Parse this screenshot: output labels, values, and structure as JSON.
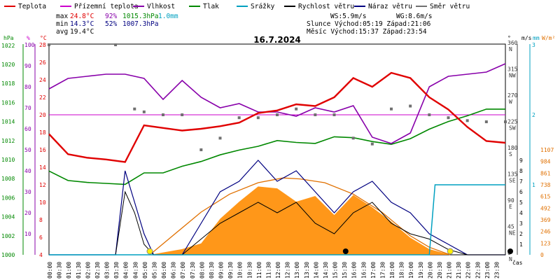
{
  "chart_data": {
    "type": "line",
    "title": "16.7.2024",
    "legend": [
      {
        "label": "Teplota",
        "color": "#e00000"
      },
      {
        "label": "Přízemní teplota",
        "color": "#cc00cc"
      },
      {
        "label": "Vlhkost",
        "color": "#8800aa"
      },
      {
        "label": "Tlak",
        "color": "#008800"
      },
      {
        "label": "Srážky",
        "color": "#00a0c0"
      },
      {
        "label": "Rychlost větru",
        "color": "#000000"
      },
      {
        "label": "Náraz větru",
        "color": "#000080"
      },
      {
        "label": "Směr větru",
        "color": "#707070"
      }
    ],
    "stats": {
      "max_label": "max",
      "max_temp": "24.8°C",
      "max_hum": "92%",
      "max_press": "1015.3hPa",
      "max_rain": "1.0mm",
      "min_label": "min",
      "min_temp": "14.3°C",
      "min_hum": "52%",
      "min_press": "1007.3hPa",
      "avg_label": "avg",
      "avg_temp": "19.4°C",
      "ws": "WS:5.9m/s",
      "wg": "WG:8.6m/s",
      "sun": "Slunce Východ:05:19   Západ:21:06",
      "moon": "Měsíc  Východ:15:37   Západ:23:54"
    },
    "axis_units": {
      "press": "hPa",
      "hum": "%",
      "temp": "°C",
      "deg": "°",
      "ms": "m/s",
      "mm": "mm",
      "wm2": "W/m²",
      "time": "čas"
    },
    "press_ticks": [
      1022,
      1020,
      1018,
      1016,
      1014,
      1012,
      1010,
      1008,
      1006,
      1004,
      1002,
      1000
    ],
    "hum_ticks": [
      100,
      90,
      80,
      70,
      60,
      50,
      40,
      30,
      20,
      10
    ],
    "temp_ticks": [
      28,
      26,
      24,
      22,
      20,
      18,
      16,
      14,
      12,
      10,
      8,
      6,
      4
    ],
    "dir_ticks": [
      "360\nN",
      "315\nNW",
      "270\nW",
      "225\nSW",
      "180\nS",
      "135\nSE",
      "90\nE",
      "45\nNE",
      "0\nN"
    ],
    "ms_ticks": [
      3,
      2,
      1
    ],
    "speed_ticks": [
      9,
      8,
      7,
      6,
      5,
      4,
      3,
      2,
      1
    ],
    "mm_ticks": [
      3,
      2,
      1
    ],
    "rad_ticks": [
      1107,
      984,
      861,
      738,
      615,
      492,
      369,
      246,
      123,
      0
    ],
    "time_labels": [
      "00:00",
      "00:30",
      "01:00",
      "01:30",
      "02:00",
      "02:30",
      "03:00",
      "03:30",
      "04:00",
      "04:30",
      "05:00",
      "05:30",
      "06:00",
      "06:30",
      "07:00",
      "07:30",
      "08:00",
      "08:30",
      "09:00",
      "09:30",
      "10:00",
      "10:30",
      "11:00",
      "11:30",
      "12:00",
      "12:30",
      "13:00",
      "13:30",
      "14:00",
      "14:30",
      "15:00",
      "15:30",
      "16:00",
      "16:30",
      "17:00",
      "17:30",
      "18:00",
      "18:30",
      "19:00",
      "19:30",
      "20:00",
      "20:30",
      "21:00",
      "21:30",
      "22:00",
      "22:30",
      "23:00",
      "23:30"
    ],
    "ground_temp_ref": 20,
    "series": [
      {
        "name": "Teplota",
        "unit": "°C",
        "x": [
          0,
          1,
          2,
          3,
          4,
          5,
          6,
          7,
          8,
          9,
          10,
          11,
          12,
          13,
          14,
          15,
          16,
          17,
          18,
          19,
          20,
          21,
          22,
          23,
          24
        ],
        "values": [
          17.8,
          15.5,
          15.1,
          14.9,
          14.6,
          18.8,
          18.5,
          18.2,
          18.4,
          18.7,
          19.1,
          20.2,
          20.5,
          21.2,
          21.0,
          22.0,
          24.2,
          23.2,
          24.8,
          24.2,
          22.0,
          20.6,
          18.6,
          17.0,
          16.8
        ]
      },
      {
        "name": "Vlhkost",
        "unit": "%",
        "x": [
          0,
          1,
          2,
          3,
          4,
          5,
          6,
          7,
          8,
          9,
          10,
          11,
          12,
          13,
          14,
          15,
          16,
          17,
          18,
          19,
          20,
          21,
          22,
          23,
          24
        ],
        "values": [
          79,
          84,
          85,
          86,
          86,
          84,
          74,
          83,
          75,
          70,
          72,
          68,
          68,
          66,
          70,
          68,
          71,
          56,
          53,
          58,
          80,
          85,
          86,
          87,
          91
        ]
      },
      {
        "name": "Tlak",
        "unit": "hPa",
        "x": [
          0,
          1,
          2,
          3,
          4,
          5,
          6,
          7,
          8,
          9,
          10,
          11,
          12,
          13,
          14,
          15,
          16,
          17,
          18,
          19,
          20,
          21,
          22,
          23,
          24
        ],
        "values": [
          1008.8,
          1007.8,
          1007.6,
          1007.5,
          1007.4,
          1008.6,
          1008.6,
          1009.3,
          1009.8,
          1010.5,
          1011.0,
          1011.4,
          1012.0,
          1011.8,
          1011.7,
          1012.4,
          1012.3,
          1011.9,
          1011.6,
          1012.2,
          1013.2,
          1014.0,
          1014.6,
          1015.3,
          1015.3
        ]
      },
      {
        "name": "Směr větru",
        "unit": "°",
        "x": [
          0,
          3.5,
          4.5,
          5,
          6,
          7,
          8,
          9,
          10,
          11,
          12,
          13,
          14,
          15,
          16,
          17,
          18,
          19,
          20,
          21,
          22,
          23,
          24
        ],
        "values": [
          360,
          360,
          250,
          245,
          240,
          240,
          180,
          200,
          235,
          235,
          240,
          250,
          240,
          240,
          200,
          190,
          250,
          255,
          240,
          235,
          230,
          228,
          228
        ]
      },
      {
        "name": "Rychlost větru",
        "unit": "m/s",
        "x": [
          0,
          3.5,
          4,
          4.5,
          5,
          5.5,
          6,
          7,
          8,
          9,
          10,
          11,
          12,
          13,
          14,
          15,
          16,
          17,
          18,
          19,
          20,
          21,
          22,
          23,
          24
        ],
        "values": [
          0,
          0,
          6,
          4,
          1,
          0,
          0,
          0,
          1.5,
          3,
          4,
          5,
          4,
          5,
          3,
          2,
          4,
          5,
          3,
          2,
          1.5,
          0.5,
          0,
          0,
          0
        ]
      },
      {
        "name": "Náraz větru",
        "unit": "m/s",
        "x": [
          0,
          3.5,
          4,
          4.5,
          5,
          5.5,
          6,
          7,
          8,
          9,
          10,
          11,
          12,
          13,
          14,
          15,
          16,
          17,
          18,
          19,
          20,
          21,
          22,
          23,
          24
        ],
        "values": [
          0,
          0,
          8,
          5,
          2,
          0,
          0,
          0,
          3,
          6,
          7,
          9,
          7,
          8,
          6,
          4,
          6,
          7,
          5,
          4,
          2,
          1,
          0,
          0,
          0
        ]
      },
      {
        "name": "Srážky",
        "unit": "mm",
        "x": [
          0,
          20,
          20.3,
          24
        ],
        "values": [
          0,
          0,
          1.0,
          1.0
        ]
      },
      {
        "name": "Solar radiation",
        "unit": "W/m²",
        "x": [
          0,
          5.3,
          7,
          8,
          9,
          10,
          11,
          12,
          13,
          14,
          15,
          16,
          17,
          18,
          19,
          20,
          21.1,
          24
        ],
        "values": [
          0,
          0,
          60,
          120,
          380,
          560,
          720,
          700,
          560,
          620,
          420,
          630,
          500,
          350,
          180,
          60,
          0,
          0
        ]
      },
      {
        "name": "Theoretical radiation",
        "unit": "W/m²",
        "x": [
          5.3,
          6.5,
          8,
          9.5,
          11,
          12.3,
          13.2,
          14.5,
          16,
          17.5,
          19,
          20,
          21.1
        ],
        "values": [
          0,
          200,
          450,
          640,
          760,
          810,
          800,
          760,
          640,
          450,
          200,
          80,
          0
        ]
      }
    ]
  }
}
